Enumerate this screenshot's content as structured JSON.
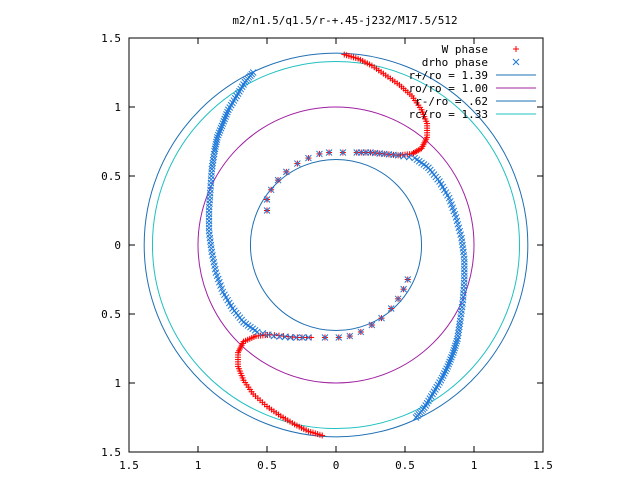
{
  "chart_data": {
    "type": "scatter",
    "title": "m2/n1.5/q1.5/r-+.45-j232/M17.5/512",
    "xlabel": "",
    "ylabel": "",
    "xlim": [
      -1.5,
      1.5
    ],
    "ylim": [
      -1.5,
      1.5
    ],
    "xtick_values": [
      -1.5,
      -1,
      -0.5,
      0,
      0.5,
      1,
      1.5
    ],
    "ytick_values": [
      1.5,
      1,
      0.5,
      0,
      -0.5,
      -1,
      -1.5
    ],
    "xtick_labels": [
      "1.5",
      "1",
      "0.5",
      "0",
      "0.5",
      "1",
      "1.5"
    ],
    "ytick_labels": [
      "1.5",
      "1",
      "0.5",
      "0",
      "0.5",
      "1",
      "1.5"
    ],
    "grid": false,
    "legend_position": "top-right",
    "circles": [
      {
        "name": "r+/ro = 1.39",
        "radius": 1.39,
        "color": "#1f6fb2"
      },
      {
        "name": "ro/ro = 1.00",
        "radius": 1.0,
        "color": "#a020a0"
      },
      {
        "name": "r-/ro = .62",
        "radius": 0.62,
        "color": "#1f6fb2"
      },
      {
        "name": "rc/ro = 1.33",
        "radius": 1.33,
        "color": "#20c0c0"
      }
    ],
    "series": [
      {
        "name": "W phase",
        "marker": "+",
        "color": "#ff0000",
        "arms": [
          [
            [
              0.06,
              1.38
            ],
            [
              0.16,
              1.35
            ],
            [
              0.26,
              1.3
            ],
            [
              0.36,
              1.23
            ],
            [
              0.46,
              1.16
            ],
            [
              0.55,
              1.08
            ],
            [
              0.62,
              0.98
            ],
            [
              0.66,
              0.88
            ],
            [
              0.66,
              0.78
            ],
            [
              0.62,
              0.7
            ],
            [
              0.55,
              0.66
            ],
            [
              0.45,
              0.65
            ],
            [
              0.35,
              0.66
            ],
            [
              0.25,
              0.67
            ],
            [
              0.15,
              0.67
            ],
            [
              0.05,
              0.67
            ],
            [
              -0.05,
              0.67
            ],
            [
              -0.12,
              0.66
            ],
            [
              -0.2,
              0.63
            ],
            [
              -0.28,
              0.59
            ],
            [
              -0.36,
              0.53
            ],
            [
              -0.42,
              0.47
            ],
            [
              -0.47,
              0.4
            ],
            [
              -0.5,
              0.33
            ],
            [
              -0.5,
              0.25
            ]
          ],
          [
            [
              -0.1,
              -1.38
            ],
            [
              -0.2,
              -1.35
            ],
            [
              -0.3,
              -1.3
            ],
            [
              -0.4,
              -1.24
            ],
            [
              -0.5,
              -1.17
            ],
            [
              -0.6,
              -1.08
            ],
            [
              -0.67,
              -0.98
            ],
            [
              -0.71,
              -0.88
            ],
            [
              -0.71,
              -0.78
            ],
            [
              -0.67,
              -0.7
            ],
            [
              -0.58,
              -0.66
            ],
            [
              -0.48,
              -0.65
            ],
            [
              -0.38,
              -0.66
            ],
            [
              -0.28,
              -0.67
            ],
            [
              -0.18,
              -0.67
            ],
            [
              -0.08,
              -0.67
            ],
            [
              0.02,
              -0.67
            ],
            [
              0.1,
              -0.66
            ],
            [
              0.18,
              -0.63
            ],
            [
              0.26,
              -0.58
            ],
            [
              0.33,
              -0.53
            ],
            [
              0.4,
              -0.46
            ],
            [
              0.45,
              -0.39
            ],
            [
              0.49,
              -0.32
            ],
            [
              0.52,
              -0.25
            ]
          ]
        ]
      },
      {
        "name": "drho phase",
        "marker": "x",
        "color": "#1e78d8",
        "arms": [
          [
            [
              -0.6,
              1.25
            ],
            [
              -0.66,
              1.18
            ],
            [
              -0.72,
              1.08
            ],
            [
              -0.78,
              0.98
            ],
            [
              -0.82,
              0.88
            ],
            [
              -0.86,
              0.78
            ],
            [
              -0.88,
              0.68
            ],
            [
              -0.9,
              0.55
            ],
            [
              -0.91,
              0.4
            ],
            [
              -0.92,
              0.25
            ],
            [
              -0.92,
              0.1
            ],
            [
              -0.9,
              -0.05
            ],
            [
              -0.87,
              -0.2
            ],
            [
              -0.82,
              -0.34
            ],
            [
              -0.75,
              -0.46
            ],
            [
              -0.67,
              -0.56
            ],
            [
              -0.57,
              -0.63
            ],
            [
              -0.45,
              -0.66
            ],
            [
              -0.33,
              -0.67
            ],
            [
              -0.2,
              -0.67
            ],
            [
              -0.08,
              -0.67
            ],
            [
              0.02,
              -0.67
            ],
            [
              0.1,
              -0.66
            ],
            [
              0.18,
              -0.63
            ],
            [
              0.26,
              -0.58
            ],
            [
              0.33,
              -0.53
            ],
            [
              0.4,
              -0.46
            ],
            [
              0.45,
              -0.39
            ],
            [
              0.49,
              -0.32
            ],
            [
              0.52,
              -0.25
            ]
          ],
          [
            [
              0.58,
              -1.25
            ],
            [
              0.64,
              -1.18
            ],
            [
              0.7,
              -1.08
            ],
            [
              0.76,
              -0.98
            ],
            [
              0.81,
              -0.88
            ],
            [
              0.85,
              -0.78
            ],
            [
              0.88,
              -0.68
            ],
            [
              0.9,
              -0.55
            ],
            [
              0.92,
              -0.4
            ],
            [
              0.93,
              -0.25
            ],
            [
              0.93,
              -0.1
            ],
            [
              0.91,
              0.05
            ],
            [
              0.87,
              0.2
            ],
            [
              0.82,
              0.34
            ],
            [
              0.75,
              0.46
            ],
            [
              0.67,
              0.56
            ],
            [
              0.57,
              0.63
            ],
            [
              0.45,
              0.65
            ],
            [
              0.35,
              0.66
            ],
            [
              0.25,
              0.67
            ],
            [
              0.15,
              0.67
            ],
            [
              0.05,
              0.67
            ],
            [
              -0.05,
              0.67
            ],
            [
              -0.12,
              0.66
            ],
            [
              -0.2,
              0.63
            ],
            [
              -0.28,
              0.59
            ],
            [
              -0.36,
              0.53
            ],
            [
              -0.42,
              0.47
            ],
            [
              -0.47,
              0.4
            ],
            [
              -0.5,
              0.33
            ],
            [
              -0.5,
              0.25
            ]
          ]
        ]
      }
    ]
  }
}
